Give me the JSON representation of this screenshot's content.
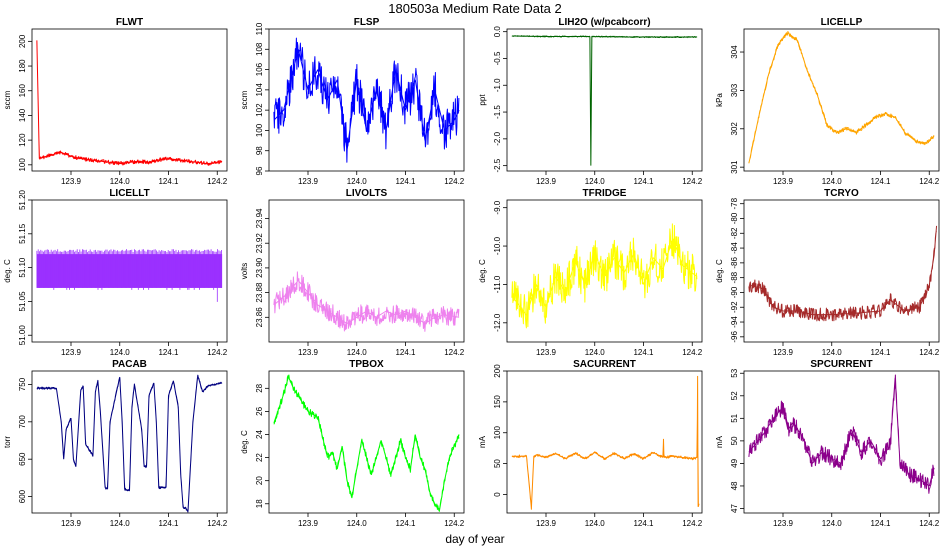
{
  "figure": {
    "title": "180503a   Medium Rate Data 2",
    "xlabel": "day of year"
  },
  "chart_data": [
    {
      "type": "line",
      "title": "FLWT",
      "ylabel": "sccm",
      "color": "#ff0000",
      "xlim": [
        123.82,
        124.22
      ],
      "ylim": [
        95,
        210
      ],
      "xticks": [
        "123.9",
        "124.0",
        "124.1",
        "124.2"
      ],
      "yticks": [
        "100",
        "120",
        "140",
        "160",
        "180",
        "200"
      ],
      "x": [
        123.83,
        123.835,
        123.86,
        123.88,
        123.9,
        123.92,
        123.94,
        123.96,
        123.98,
        124.0,
        124.02,
        124.04,
        124.06,
        124.08,
        124.1,
        124.12,
        124.14,
        124.16,
        124.18,
        124.2,
        124.21
      ],
      "y": [
        200,
        105,
        108,
        110,
        107,
        105,
        104,
        103,
        102,
        101,
        102,
        103,
        102,
        104,
        105,
        104,
        103,
        102,
        101,
        102,
        103
      ],
      "noise": 1.5
    },
    {
      "type": "line",
      "title": "FLSP",
      "ylabel": "sccm",
      "color": "#0000ff",
      "xlim": [
        123.82,
        124.22
      ],
      "ylim": [
        96,
        110
      ],
      "xticks": [
        "123.9",
        "124.0",
        "124.1",
        "124.2"
      ],
      "yticks": [
        "96",
        "98",
        "100",
        "102",
        "104",
        "106",
        "108",
        "110"
      ],
      "x": [
        123.83,
        123.85,
        123.87,
        123.88,
        123.9,
        123.92,
        123.94,
        123.96,
        123.98,
        124.0,
        124.02,
        124.04,
        124.06,
        124.08,
        124.1,
        124.12,
        124.14,
        124.16,
        124.18,
        124.2,
        124.21
      ],
      "y": [
        101,
        102,
        106,
        108,
        104,
        106,
        103,
        105,
        98,
        105,
        100,
        104,
        100,
        106,
        102,
        105,
        99,
        104,
        100,
        101,
        102
      ],
      "noise": 2
    },
    {
      "type": "line",
      "title": "LIH2O (w/pcabcorr)",
      "ylabel": "ppt",
      "color": "#006400",
      "xlim": [
        123.82,
        124.22
      ],
      "ylim": [
        -2.6,
        0.05
      ],
      "xticks": [
        "123.9",
        "124.0",
        "124.1",
        "124.2"
      ],
      "yticks": [
        "-2.5",
        "-2.0",
        "-1.5",
        "-1.0",
        "-0.5",
        "0.0"
      ],
      "x": [
        123.83,
        123.9,
        123.99,
        123.992,
        123.994,
        124.1,
        124.21
      ],
      "y": [
        -0.08,
        -0.09,
        -0.09,
        -2.5,
        -0.09,
        -0.1,
        -0.1
      ],
      "noise": 0.01
    },
    {
      "type": "line",
      "title": "LICELLP",
      "ylabel": "kPa",
      "color": "#ffa500",
      "xlim": [
        123.82,
        124.22
      ],
      "ylim": [
        300.9,
        304.6
      ],
      "xticks": [
        "123.9",
        "124.0",
        "124.1",
        "124.2"
      ],
      "yticks": [
        "301",
        "302",
        "303",
        "304"
      ],
      "x": [
        123.83,
        123.85,
        123.87,
        123.89,
        123.91,
        123.93,
        123.95,
        123.97,
        123.99,
        124.01,
        124.03,
        124.05,
        124.07,
        124.09,
        124.11,
        124.13,
        124.15,
        124.17,
        124.19,
        124.21
      ],
      "y": [
        301.1,
        302.3,
        303.4,
        304.2,
        304.5,
        304.3,
        303.5,
        302.9,
        302.1,
        301.9,
        302.0,
        301.9,
        302.1,
        302.3,
        302.4,
        302.3,
        301.9,
        301.7,
        301.6,
        301.8
      ],
      "noise": 0.05
    },
    {
      "type": "bars",
      "title": "LICELLT",
      "ylabel": "deg. C",
      "color": "#9b30ff",
      "xlim": [
        123.82,
        124.22
      ],
      "ylim": [
        50.99,
        51.2
      ],
      "xticks": [
        "123.9",
        "124.0",
        "124.1",
        "124.2"
      ],
      "yticks": [
        "51.00",
        "51.05",
        "51.10",
        "51.15",
        "51.20"
      ],
      "x": [
        123.83,
        124.21
      ],
      "y": [
        51.07,
        51.12
      ]
    },
    {
      "type": "line",
      "title": "LIVOLTS",
      "ylabel": "volts",
      "color": "#ee82ee",
      "xlim": [
        123.82,
        124.22
      ],
      "ylim": [
        23.84,
        23.955
      ],
      "xticks": [
        "123.9",
        "124.0",
        "124.1",
        "124.2"
      ],
      "yticks": [
        "23.86",
        "23.88",
        "23.90",
        "23.92",
        "23.94"
      ],
      "x": [
        123.83,
        123.86,
        123.88,
        123.9,
        123.92,
        123.94,
        123.96,
        123.98,
        124.0,
        124.02,
        124.04,
        124.06,
        124.08,
        124.1,
        124.12,
        124.14,
        124.16,
        124.18,
        124.21
      ],
      "y": [
        23.87,
        23.88,
        23.89,
        23.88,
        23.87,
        23.865,
        23.86,
        23.855,
        23.86,
        23.865,
        23.86,
        23.865,
        23.862,
        23.865,
        23.86,
        23.855,
        23.86,
        23.862,
        23.86
      ],
      "noise": 0.008
    },
    {
      "type": "line",
      "title": "TFRIDGE",
      "ylabel": "deg. C",
      "color": "#ffff00",
      "xlim": [
        123.82,
        124.22
      ],
      "ylim": [
        -12.5,
        -8.8
      ],
      "xticks": [
        "123.9",
        "124.0",
        "124.1",
        "124.2"
      ],
      "yticks": [
        "-12.0",
        "-11.0",
        "-10.0",
        "-9.0"
      ],
      "x": [
        123.83,
        123.86,
        123.88,
        123.9,
        123.92,
        123.94,
        123.96,
        123.98,
        124.0,
        124.02,
        124.04,
        124.06,
        124.08,
        124.1,
        124.12,
        124.14,
        124.16,
        124.18,
        124.21
      ],
      "y": [
        -11.3,
        -11.8,
        -11.0,
        -11.6,
        -10.8,
        -11.2,
        -10.4,
        -11.0,
        -10.2,
        -10.8,
        -10.3,
        -10.7,
        -10.2,
        -11.0,
        -10.3,
        -10.6,
        -9.8,
        -10.5,
        -10.8
      ],
      "noise": 0.5
    },
    {
      "type": "line",
      "title": "TCRYO",
      "ylabel": "deg. C",
      "color": "#a52a2a",
      "xlim": [
        123.82,
        124.22
      ],
      "ylim": [
        -96.7,
        -77.5
      ],
      "xticks": [
        "123.9",
        "124.0",
        "124.1",
        "124.2"
      ],
      "yticks": [
        "-96",
        "-94",
        "-92",
        "-90",
        "-88",
        "-86",
        "-84",
        "-82",
        "-80",
        "-78"
      ],
      "x": [
        123.83,
        123.86,
        123.88,
        123.9,
        123.93,
        123.96,
        124.0,
        124.05,
        124.1,
        124.12,
        124.15,
        124.18,
        124.2,
        124.21,
        124.215
      ],
      "y": [
        -89,
        -89.5,
        -92,
        -92.5,
        -92.5,
        -93,
        -93,
        -92.8,
        -92.5,
        -91,
        -92.5,
        -92,
        -89,
        -85,
        -81
      ],
      "noise": 0.9
    },
    {
      "type": "line",
      "title": "PACAB",
      "ylabel": "torr",
      "color": "#000080",
      "xlim": [
        123.82,
        124.22
      ],
      "ylim": [
        578,
        768
      ],
      "xticks": [
        "123.9",
        "124.0",
        "124.1",
        "124.2"
      ],
      "yticks": [
        "600",
        "650",
        "700",
        "750"
      ],
      "x": [
        123.83,
        123.87,
        123.88,
        123.885,
        123.89,
        123.9,
        123.905,
        123.91,
        123.92,
        123.925,
        123.93,
        123.945,
        123.95,
        123.955,
        123.96,
        123.97,
        123.975,
        123.98,
        123.995,
        124.0,
        124.005,
        124.01,
        124.02,
        124.025,
        124.03,
        124.045,
        124.05,
        124.055,
        124.06,
        124.07,
        124.075,
        124.08,
        124.095,
        124.1,
        124.11,
        124.12,
        124.125,
        124.13,
        124.135,
        124.14,
        124.15,
        124.16,
        124.17,
        124.18,
        124.21
      ],
      "y": [
        745,
        745,
        700,
        650,
        690,
        705,
        650,
        640,
        742,
        748,
        670,
        655,
        740,
        755,
        715,
        612,
        610,
        700,
        745,
        760,
        700,
        610,
        608,
        720,
        750,
        690,
        640,
        640,
        735,
        752,
        700,
        612,
        612,
        735,
        755,
        720,
        630,
        585,
        585,
        580,
        700,
        762,
        740,
        748,
        752
      ],
      "noise": 1.5
    },
    {
      "type": "line",
      "title": "TPBOX",
      "ylabel": "deg. C",
      "color": "#00ff00",
      "xlim": [
        123.82,
        124.22
      ],
      "ylim": [
        17.2,
        29.5
      ],
      "xticks": [
        "123.9",
        "124.0",
        "124.1",
        "124.2"
      ],
      "yticks": [
        "18",
        "20",
        "22",
        "24",
        "26",
        "28"
      ],
      "x": [
        123.83,
        123.85,
        123.86,
        123.87,
        123.9,
        123.92,
        123.94,
        123.95,
        123.96,
        123.97,
        123.98,
        123.99,
        124.0,
        124.01,
        124.02,
        124.03,
        124.04,
        124.05,
        124.06,
        124.07,
        124.08,
        124.09,
        124.1,
        124.11,
        124.12,
        124.13,
        124.14,
        124.15,
        124.16,
        124.17,
        124.18,
        124.19,
        124.2,
        124.21
      ],
      "y": [
        25,
        27.5,
        29,
        28,
        26,
        25.5,
        22,
        22.5,
        21,
        23,
        20,
        18.5,
        21,
        23.5,
        22,
        20.5,
        22,
        23.5,
        22,
        20.5,
        22,
        23.5,
        22,
        21,
        24,
        22,
        21,
        19,
        18,
        17.5,
        20,
        22,
        23,
        24
      ],
      "noise": 0.3
    },
    {
      "type": "line",
      "title": "SACURRENT",
      "ylabel": "mA",
      "color": "#ff8c00",
      "xlim": [
        123.82,
        124.22
      ],
      "ylim": [
        -30,
        200
      ],
      "xticks": [
        "123.9",
        "124.0",
        "124.1",
        "124.2"
      ],
      "yticks": [
        "0",
        "50",
        "100",
        "150",
        "200"
      ],
      "x": [
        123.83,
        123.85,
        123.86,
        123.87,
        123.875,
        123.88,
        123.9,
        123.92,
        123.94,
        123.96,
        123.98,
        124.0,
        124.02,
        124.04,
        124.06,
        124.08,
        124.1,
        124.12,
        124.14,
        124.141,
        124.142,
        124.16,
        124.2,
        124.21,
        124.211,
        124.212,
        124.214
      ],
      "y": [
        62,
        62,
        62,
        -22,
        62,
        64,
        60,
        66,
        58,
        67,
        58,
        68,
        58,
        67,
        58,
        66,
        58,
        68,
        60,
        90,
        60,
        62,
        58,
        60,
        192,
        -20,
        -15
      ],
      "noise": 2
    },
    {
      "type": "line",
      "title": "SPCURRENT",
      "ylabel": "mA",
      "color": "#8b008b",
      "xlim": [
        123.82,
        124.22
      ],
      "ylim": [
        46.8,
        53.1
      ],
      "xticks": [
        "123.9",
        "124.0",
        "124.1",
        "124.2"
      ],
      "yticks": [
        "47",
        "48",
        "49",
        "50",
        "51",
        "52",
        "53"
      ],
      "x": [
        123.83,
        123.86,
        123.88,
        123.9,
        123.91,
        123.92,
        123.94,
        123.96,
        123.98,
        124.0,
        124.02,
        124.04,
        124.06,
        124.08,
        124.1,
        124.12,
        124.13,
        124.14,
        124.16,
        124.18,
        124.2,
        124.21
      ],
      "y": [
        49.5,
        50.3,
        51,
        51.5,
        50.5,
        50.8,
        50.2,
        49,
        49.5,
        49.2,
        49,
        50.5,
        49.5,
        50,
        49.2,
        49.8,
        52.8,
        49,
        48.5,
        48.3,
        48,
        48.8
      ],
      "noise": 0.35
    }
  ]
}
